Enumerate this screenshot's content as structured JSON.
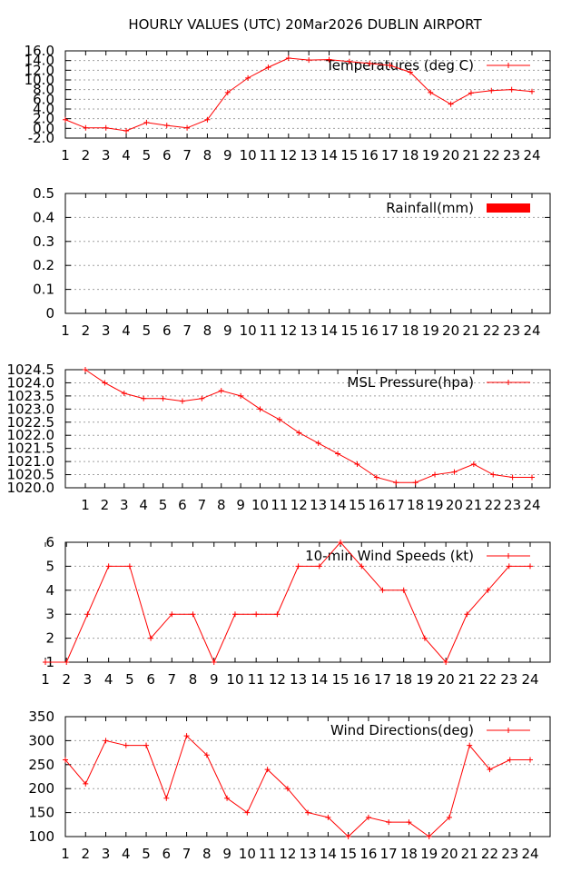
{
  "title": "HOURLY VALUES (UTC) 20Mar2026  DUBLIN AIRPORT",
  "colors": {
    "series": "#ff0000",
    "frame": "#000000",
    "grid": "#a0a0a0"
  },
  "chart_data": [
    {
      "type": "line",
      "legend": "Temperatures (deg C)",
      "legend_position": "top-right",
      "grid": true,
      "xlim": [
        1,
        24
      ],
      "ylim": [
        -2,
        16
      ],
      "x_ticks": [
        "1",
        "2",
        "3",
        "4",
        "5",
        "6",
        "7",
        "8",
        "9",
        "10",
        "11",
        "12",
        "13",
        "14",
        "15",
        "16",
        "17",
        "18",
        "19",
        "20",
        "21",
        "22",
        "23",
        "24"
      ],
      "y_ticks": [
        "-2.0",
        "0.0",
        "2.0",
        "4.0",
        "6.0",
        "8.0",
        "10.0",
        "12.0",
        "14.0",
        "16.0"
      ],
      "x": [
        1,
        2,
        3,
        4,
        5,
        6,
        7,
        8,
        9,
        10,
        11,
        12,
        13,
        14,
        15,
        16,
        17,
        18,
        19,
        20,
        21,
        22,
        23,
        24
      ],
      "values": [
        1.8,
        0.1,
        0.1,
        -0.5,
        1.2,
        0.6,
        0.1,
        1.8,
        7.4,
        10.4,
        12.6,
        14.5,
        14.1,
        14.2,
        13.8,
        13.4,
        13.0,
        11.6,
        7.4,
        5.0,
        7.3,
        7.8,
        8.0,
        7.6
      ]
    },
    {
      "type": "bar",
      "legend": "Rainfall(mm)",
      "legend_position": "top-right",
      "grid": true,
      "xlim": [
        1,
        24
      ],
      "ylim": [
        0,
        0.5
      ],
      "x_ticks": [
        "1",
        "2",
        "3",
        "4",
        "5",
        "6",
        "7",
        "8",
        "9",
        "10",
        "11",
        "12",
        "13",
        "14",
        "15",
        "16",
        "17",
        "18",
        "19",
        "20",
        "21",
        "22",
        "23",
        "24"
      ],
      "y_ticks": [
        "0",
        "0.1",
        "0.2",
        "0.3",
        "0.4",
        "0.5"
      ],
      "x": [
        1,
        2,
        3,
        4,
        5,
        6,
        7,
        8,
        9,
        10,
        11,
        12,
        13,
        14,
        15,
        16,
        17,
        18,
        19,
        20,
        21,
        22,
        23,
        24
      ],
      "values": [
        0,
        0,
        0,
        0,
        0,
        0,
        0,
        0,
        0,
        0,
        0,
        0,
        0,
        0,
        0,
        0,
        0,
        0,
        0,
        0,
        0,
        0,
        0,
        0
      ]
    },
    {
      "type": "line",
      "legend": "MSL Pressure(hpa)",
      "legend_position": "top-right",
      "grid": true,
      "xlim": [
        1,
        24
      ],
      "ylim": [
        1020.0,
        1024.5
      ],
      "x_ticks": [
        "1",
        "2",
        "3",
        "4",
        "5",
        "6",
        "7",
        "8",
        "9",
        "10",
        "11",
        "12",
        "13",
        "14",
        "15",
        "16",
        "17",
        "18",
        "19",
        "20",
        "21",
        "22",
        "23",
        "24"
      ],
      "y_ticks": [
        "1020.0",
        "1020.5",
        "1021.0",
        "1021.5",
        "1022.0",
        "1022.5",
        "1023.0",
        "1023.5",
        "1024.0",
        "1024.5"
      ],
      "x": [
        1,
        2,
        3,
        4,
        5,
        6,
        7,
        8,
        9,
        10,
        11,
        12,
        13,
        14,
        15,
        16,
        17,
        18,
        19,
        20,
        21,
        22,
        23,
        24
      ],
      "values": [
        1024.5,
        1024.0,
        1023.6,
        1023.4,
        1023.4,
        1023.3,
        1023.4,
        1023.7,
        1023.5,
        1023.0,
        1022.6,
        1022.1,
        1021.7,
        1021.3,
        1020.9,
        1020.4,
        1020.2,
        1020.2,
        1020.5,
        1020.6,
        1020.9,
        1020.5,
        1020.4,
        1020.4
      ]
    },
    {
      "type": "line",
      "legend": "10-min Wind Speeds (kt)",
      "legend_position": "top-right",
      "grid": true,
      "xlim": [
        1,
        24
      ],
      "ylim": [
        1,
        6
      ],
      "x_ticks": [
        "1",
        "2",
        "3",
        "4",
        "5",
        "6",
        "7",
        "8",
        "9",
        "10",
        "11",
        "12",
        "13",
        "14",
        "15",
        "16",
        "17",
        "18",
        "19",
        "20",
        "21",
        "22",
        "23",
        "24"
      ],
      "y_ticks": [
        "1",
        "2",
        "3",
        "4",
        "5",
        "6"
      ],
      "x": [
        1,
        2,
        3,
        4,
        5,
        6,
        7,
        8,
        9,
        10,
        11,
        12,
        13,
        14,
        15,
        16,
        17,
        18,
        19,
        20,
        21,
        22,
        23,
        24
      ],
      "values": [
        1,
        1,
        3,
        5,
        5,
        2,
        3,
        3,
        1,
        3,
        3,
        3,
        5,
        5,
        6,
        5,
        4,
        4,
        2,
        1,
        3,
        4,
        5,
        5
      ]
    },
    {
      "type": "line",
      "legend": "Wind Directions(deg)",
      "legend_position": "top-right",
      "grid": true,
      "xlim": [
        1,
        24
      ],
      "ylim": [
        100,
        350
      ],
      "x_ticks": [
        "1",
        "2",
        "3",
        "4",
        "5",
        "6",
        "7",
        "8",
        "9",
        "10",
        "11",
        "12",
        "13",
        "14",
        "15",
        "16",
        "17",
        "18",
        "19",
        "20",
        "21",
        "22",
        "23",
        "24"
      ],
      "y_ticks": [
        "100",
        "150",
        "200",
        "250",
        "300",
        "350"
      ],
      "x": [
        1,
        2,
        3,
        4,
        5,
        6,
        7,
        8,
        9,
        10,
        11,
        12,
        13,
        14,
        15,
        16,
        17,
        18,
        19,
        20,
        21,
        22,
        23,
        24
      ],
      "values": [
        260,
        210,
        300,
        290,
        290,
        180,
        310,
        270,
        180,
        150,
        240,
        200,
        150,
        140,
        100,
        140,
        130,
        130,
        100,
        140,
        290,
        240,
        260,
        260
      ]
    }
  ]
}
